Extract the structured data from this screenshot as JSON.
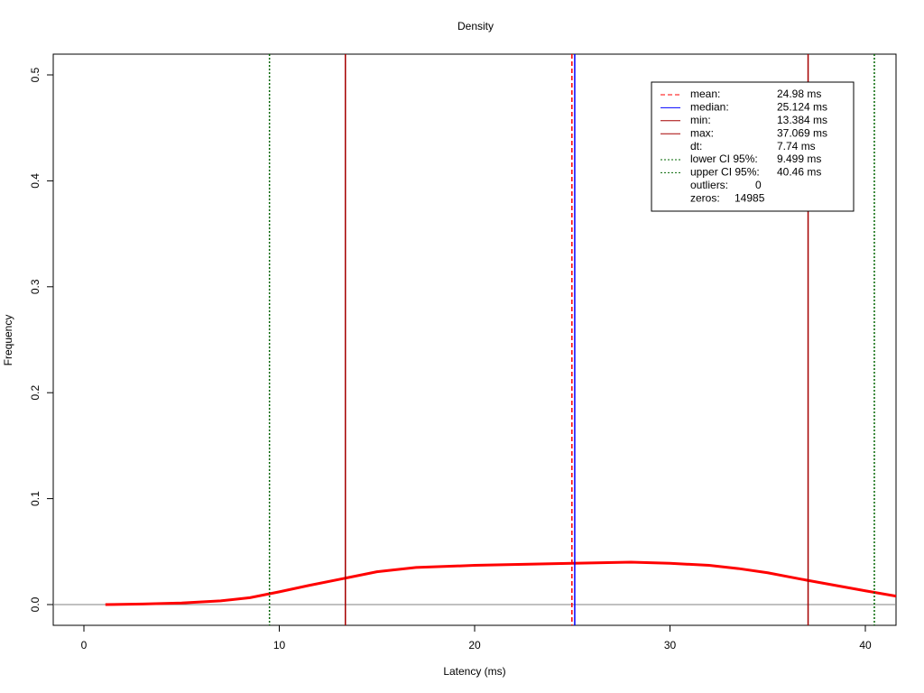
{
  "chart_data": {
    "type": "density",
    "title": "Density",
    "x_label": "Latency (ms)",
    "y_label": "Frequency",
    "xlim": [
      -1.57,
      41.57
    ],
    "ylim": [
      -0.0196,
      0.5196
    ],
    "xticks": [
      0,
      10,
      20,
      30,
      40
    ],
    "yticks": [
      {
        "value": 0,
        "label": "0.0"
      },
      0.1,
      0.2,
      0.3,
      0.4,
      0.5
    ],
    "baseline_color": "#808080",
    "series": [
      {
        "color": "#ff0000",
        "x": [
          1.1,
          3,
          5,
          7,
          8.5,
          10,
          11.5,
          13.4,
          15,
          17,
          20,
          22.5,
          25,
          28,
          30,
          32,
          33.5,
          35,
          37,
          38.5,
          40,
          41.57
        ],
        "values": [
          0,
          0.0005,
          0.0015,
          0.0035,
          0.0065,
          0.012,
          0.018,
          0.025,
          0.031,
          0.035,
          0.037,
          0.038,
          0.039,
          0.04,
          0.039,
          0.037,
          0.034,
          0.03,
          0.023,
          0.018,
          0.013,
          0.008
        ]
      }
    ],
    "reference_lines": [
      {
        "name": "mean:",
        "value": 24.98,
        "value_label": "24.98 ms",
        "color": "#ff0000",
        "style": "dashed"
      },
      {
        "name": "median:",
        "value": 25.124,
        "value_label": "25.124 ms",
        "color": "#0000ff",
        "style": "solid"
      },
      {
        "name": "min:",
        "value": 13.384,
        "value_label": "13.384 ms",
        "color": "#a50000",
        "style": "solid"
      },
      {
        "name": "max:",
        "value": 37.069,
        "value_label": "37.069 ms",
        "color": "#a50000",
        "style": "solid"
      },
      {
        "name": "lower CI 95%:",
        "value": 9.499,
        "value_label": "9.499 ms",
        "color": "#006400",
        "style": "dotted"
      },
      {
        "name": "upper CI 95%:",
        "value": 40.46,
        "value_label": "40.46 ms",
        "color": "#006400",
        "style": "dotted"
      }
    ],
    "legend_stats": [
      {
        "name": "dt:",
        "text": "7.74 ms"
      },
      {
        "name": "outliers:",
        "text": "0"
      },
      {
        "name": "zeros:",
        "text": "14985"
      }
    ]
  }
}
